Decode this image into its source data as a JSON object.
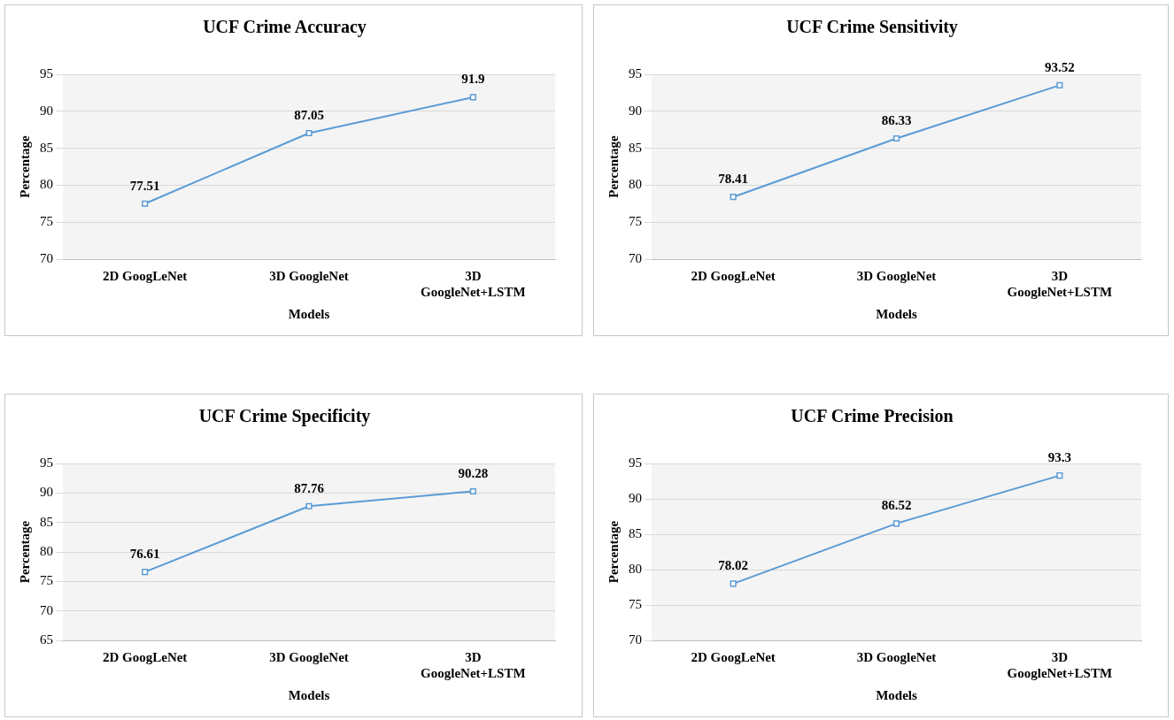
{
  "chart_data": [
    {
      "type": "line",
      "title": "UCF Crime Accuracy",
      "xlabel": "Models",
      "ylabel": "Percentage",
      "categories": [
        "2D GoogLeNet",
        "3D GoogleNet",
        "3D GoogleNet+LSTM"
      ],
      "series": [
        {
          "color": "#5b9bd5",
          "values": [
            77.51,
            87.05,
            91.9
          ]
        }
      ],
      "ylim": [
        70,
        95
      ],
      "yticks": [
        70,
        75,
        80,
        85,
        90,
        95
      ],
      "grid": "y",
      "legend": false,
      "marker": "square",
      "data_labels": true
    },
    {
      "type": "line",
      "title": "UCF Crime Sensitivity",
      "xlabel": "Models",
      "ylabel": "Percentage",
      "categories": [
        "2D GoogLeNet",
        "3D GoogleNet",
        "3D GoogleNet+LSTM"
      ],
      "series": [
        {
          "color": "#5b9bd5",
          "values": [
            78.41,
            86.33,
            93.52
          ]
        }
      ],
      "ylim": [
        70,
        95
      ],
      "yticks": [
        70,
        75,
        80,
        85,
        90,
        95
      ],
      "grid": "y",
      "legend": false,
      "marker": "square",
      "data_labels": true
    },
    {
      "type": "line",
      "title": "UCF Crime Specificity",
      "xlabel": "Models",
      "ylabel": "Percentage",
      "categories": [
        "2D GoogLeNet",
        "3D GoogleNet",
        "3D GoogleNet+LSTM"
      ],
      "series": [
        {
          "color": "#5b9bd5",
          "values": [
            76.61,
            87.76,
            90.28
          ]
        }
      ],
      "ylim": [
        65,
        95
      ],
      "yticks": [
        65,
        70,
        75,
        80,
        85,
        90,
        95
      ],
      "grid": "y",
      "legend": false,
      "marker": "square",
      "data_labels": true
    },
    {
      "type": "line",
      "title": "UCF Crime Precision",
      "xlabel": "Models",
      "ylabel": "Percentage",
      "categories": [
        "2D GoogLeNet",
        "3D GoogleNet",
        "3D GoogleNet+LSTM"
      ],
      "series": [
        {
          "color": "#5b9bd5",
          "values": [
            78.02,
            86.52,
            93.3
          ]
        }
      ],
      "ylim": [
        70,
        95
      ],
      "yticks": [
        70,
        75,
        80,
        85,
        90,
        95
      ],
      "grid": "y",
      "legend": false,
      "marker": "square",
      "data_labels": true
    }
  ]
}
